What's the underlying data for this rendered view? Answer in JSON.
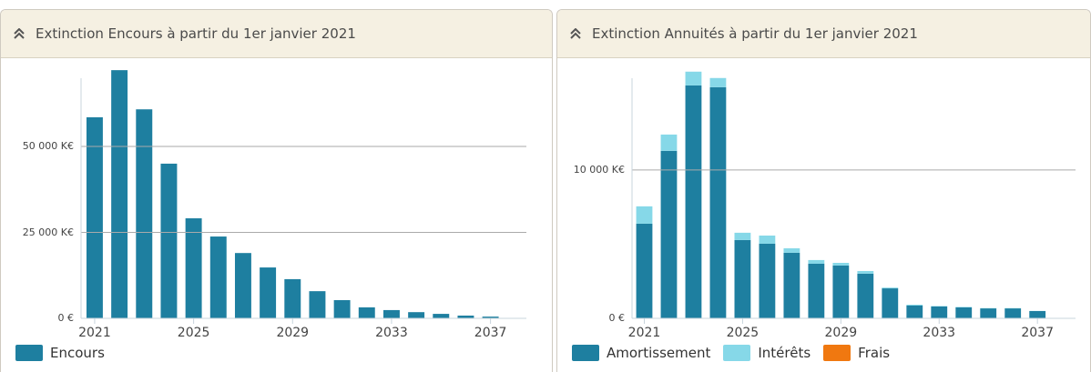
{
  "chart_data": [
    {
      "type": "bar",
      "title": "Extinction Encours à partir du 1er janvier 2021",
      "x": [
        2021,
        2022,
        2023,
        2024,
        2025,
        2026,
        2027,
        2028,
        2029,
        2030,
        2031,
        2032,
        2033,
        2034,
        2035,
        2036,
        2037
      ],
      "xlim": [
        2020.45,
        2038.45
      ],
      "xticks": [
        2021,
        2025,
        2029,
        2033,
        2037
      ],
      "ylim": [
        0,
        72500
      ],
      "yticks": [
        {
          "value": 0,
          "label": "0 €"
        },
        {
          "value": 25000,
          "label": "25 000 K€"
        },
        {
          "value": 50000,
          "label": "50 000 K€"
        }
      ],
      "grid": true,
      "series": [
        {
          "name": "Encours",
          "color": "#1e7fa0",
          "values": [
            58500,
            72200,
            60800,
            45000,
            29100,
            23800,
            19000,
            14800,
            11400,
            7900,
            5300,
            3200,
            2400,
            1800,
            1300,
            800,
            500
          ]
        }
      ]
    },
    {
      "type": "stacked_bar",
      "title": "Extinction Annuités à partir du 1er janvier 2021",
      "x": [
        2021,
        2022,
        2023,
        2024,
        2025,
        2026,
        2027,
        2028,
        2029,
        2030,
        2031,
        2032,
        2033,
        2034,
        2035,
        2036,
        2037
      ],
      "xlim": [
        2020.5,
        2038.55
      ],
      "xticks": [
        2021,
        2025,
        2029,
        2033,
        2037
      ],
      "ylim": [
        0,
        16800
      ],
      "yticks": [
        {
          "value": 0,
          "label": "0 €"
        },
        {
          "value": 10000,
          "label": "10 000 K€"
        }
      ],
      "grid": true,
      "series": [
        {
          "name": "Amortissement",
          "color": "#1e7fa0",
          "values": [
            6380,
            11290,
            15700,
            15580,
            5280,
            5030,
            4420,
            3680,
            3560,
            3010,
            2020,
            860,
            800,
            740,
            670,
            670,
            490
          ]
        },
        {
          "name": "Intérêts",
          "color": "#86d8e8",
          "values": [
            1170,
            1100,
            930,
            620,
            490,
            550,
            300,
            250,
            180,
            180,
            50,
            60,
            30,
            30,
            20,
            20,
            10
          ]
        },
        {
          "name": "Frais",
          "color": "#f07810",
          "values": [
            0,
            0,
            0,
            0,
            0,
            0,
            0,
            0,
            0,
            0,
            0,
            0,
            0,
            0,
            0,
            0,
            0
          ]
        }
      ]
    }
  ]
}
